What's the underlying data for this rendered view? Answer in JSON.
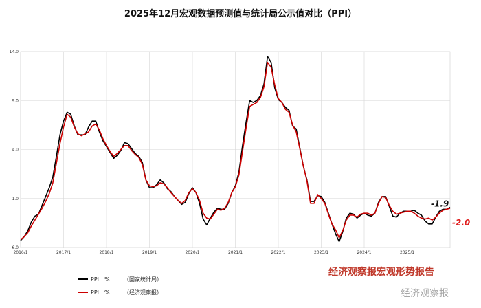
{
  "title": "2025年12月宏观数据预测值与统计局公示值对比（PPI）",
  "chart_data": {
    "type": "line",
    "title": "2025年12月宏观数据预测值与统计局公示值对比（PPI）",
    "ylim": [
      -6.0,
      14.0
    ],
    "yticks": [
      "-6.0",
      "-1.0",
      "4.0",
      "9.0",
      "14.0"
    ],
    "ytick_values": [
      -6,
      -1,
      4,
      9,
      14
    ],
    "xtick_labels": [
      "2016/1",
      "2017/1",
      "2018/1",
      "2019/1",
      "2020/1",
      "2021/1",
      "2022/1",
      "2023/1",
      "2024/1",
      "2025/1"
    ],
    "x_start": "2016/1",
    "x_end": "2025/12",
    "grid": true,
    "series": [
      {
        "name": "PPI　%　　（国家统计局）",
        "color": "#000000",
        "values": [
          -5.3,
          -4.9,
          -4.3,
          -3.4,
          -2.8,
          -2.6,
          -1.7,
          -0.8,
          0.1,
          1.2,
          3.3,
          5.5,
          6.9,
          7.8,
          7.6,
          6.4,
          5.5,
          5.5,
          5.5,
          6.3,
          6.9,
          6.9,
          5.8,
          4.9,
          4.3,
          3.7,
          3.1,
          3.4,
          3.9,
          4.7,
          4.6,
          4.1,
          3.6,
          3.3,
          2.7,
          0.9,
          0.1,
          0.1,
          0.4,
          0.9,
          0.6,
          0.0,
          -0.3,
          -0.8,
          -1.2,
          -1.6,
          -1.4,
          -0.5,
          0.1,
          -0.4,
          -1.5,
          -3.1,
          -3.7,
          -3.0,
          -2.4,
          -2.0,
          -2.1,
          -2.1,
          -1.5,
          -0.4,
          0.3,
          1.7,
          4.4,
          6.8,
          9.0,
          8.8,
          9.0,
          9.5,
          10.7,
          13.5,
          12.9,
          10.3,
          9.1,
          8.8,
          8.3,
          8.0,
          6.4,
          6.1,
          4.2,
          2.3,
          0.9,
          -1.3,
          -1.3,
          -0.7,
          -0.8,
          -1.4,
          -2.5,
          -3.6,
          -4.6,
          -5.4,
          -4.4,
          -3.0,
          -2.5,
          -2.6,
          -3.0,
          -2.7,
          -2.5,
          -2.7,
          -2.8,
          -2.5,
          -1.4,
          -0.8,
          -0.8,
          -1.8,
          -2.8,
          -2.9,
          -2.5,
          -2.3,
          -2.3,
          -2.3,
          -2.2,
          -2.5,
          -2.7,
          -3.3,
          -3.6,
          -3.6,
          -2.9,
          -2.3,
          -2.1,
          -2.1,
          -1.9
        ]
      },
      {
        "name": "PPI　%　　（经济观察报）",
        "color": "#cc0000",
        "values": [
          -5.2,
          -4.9,
          -4.5,
          -3.8,
          -3.2,
          -2.6,
          -2.0,
          -1.3,
          -0.5,
          0.6,
          2.6,
          4.6,
          6.3,
          7.6,
          7.3,
          6.3,
          5.6,
          5.4,
          5.6,
          5.8,
          6.4,
          6.6,
          6.0,
          5.1,
          4.4,
          3.8,
          3.3,
          3.6,
          4.0,
          4.4,
          4.4,
          3.9,
          3.5,
          3.2,
          2.5,
          0.9,
          0.3,
          0.2,
          0.3,
          0.6,
          0.5,
          0.1,
          -0.4,
          -0.8,
          -1.2,
          -1.5,
          -1.2,
          -0.4,
          0.0,
          -0.4,
          -1.2,
          -2.5,
          -3.0,
          -3.1,
          -2.6,
          -2.1,
          -2.2,
          -2.0,
          -1.4,
          -0.4,
          0.2,
          1.4,
          3.8,
          6.2,
          8.4,
          8.6,
          8.8,
          9.3,
          10.4,
          12.9,
          12.4,
          10.6,
          9.2,
          8.8,
          8.1,
          7.8,
          6.5,
          5.8,
          4.1,
          2.3,
          0.8,
          -1.5,
          -1.5,
          -0.6,
          -1.0,
          -1.5,
          -2.6,
          -3.6,
          -4.2,
          -5.0,
          -4.3,
          -3.2,
          -2.7,
          -2.7,
          -2.9,
          -2.6,
          -2.5,
          -2.5,
          -2.7,
          -2.5,
          -1.5,
          -0.8,
          -0.9,
          -1.7,
          -2.3,
          -2.6,
          -2.5,
          -2.4,
          -2.3,
          -2.3,
          -2.5,
          -2.8,
          -3.0,
          -3.1,
          -3.0,
          -3.2,
          -2.9,
          -2.5,
          -2.2,
          -2.1,
          -2.0
        ]
      }
    ],
    "annotations": [
      {
        "text": "-1.9",
        "series": 0
      },
      {
        "text": "-2.0",
        "series": 1
      }
    ]
  },
  "legend": [
    {
      "label": "PPI　%",
      "source": "（国家统计局）",
      "color": "#000000"
    },
    {
      "label": "PPI　%",
      "source": "（经济观察报）",
      "color": "#cc0000"
    }
  ],
  "watermark": {
    "left": "经济观察报宏观形势报告",
    "right": "经济观察报"
  }
}
